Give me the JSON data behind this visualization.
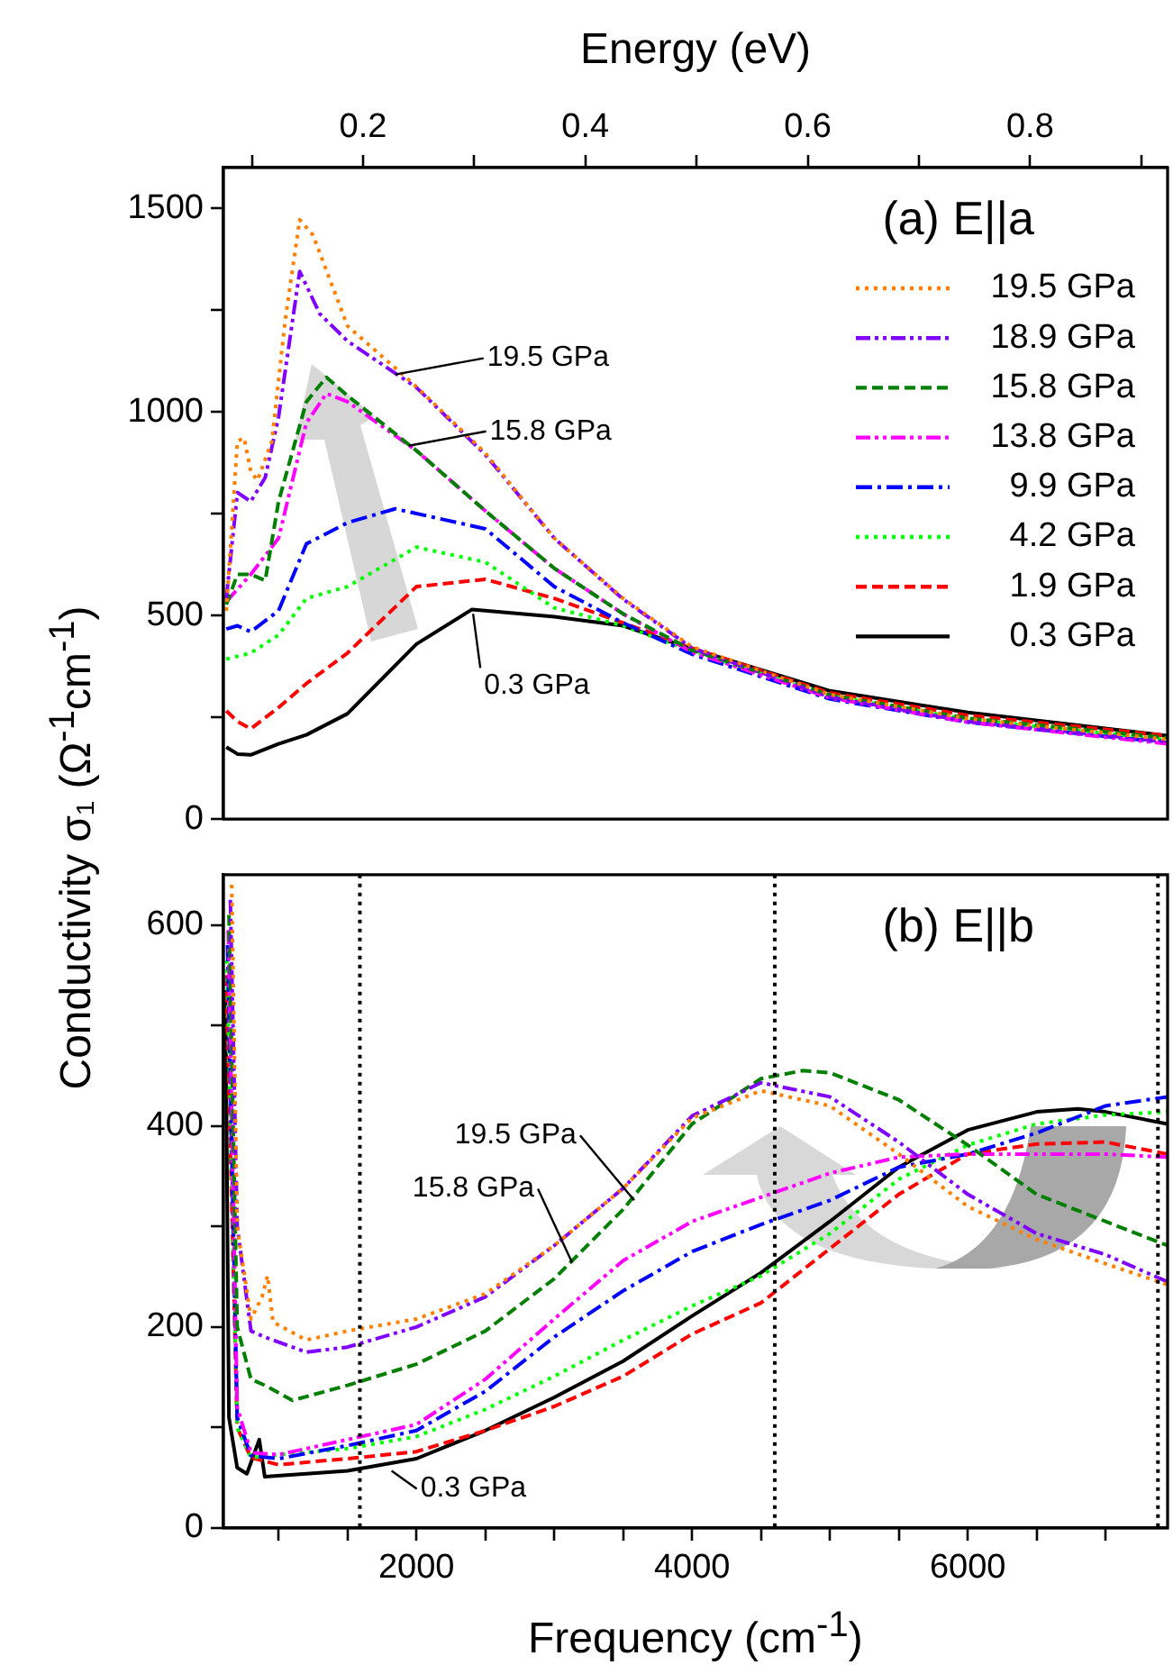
{
  "chart_data": [
    {
      "type": "line",
      "ylabel": "Conductivity σ₁ (Ω$^{-1}$cm$^{-1}$)",
      "xlabel": "Energy (eV)",
      "xlim": [
        0.0744,
        0.9237
      ],
      "xticks": [
        {
          "value": 0.1,
          "label": null
        },
        0.2,
        {
          "value": 0.3,
          "label": null
        },
        0.4,
        {
          "value": 0.5,
          "label": null
        },
        0.6,
        {
          "value": 0.7,
          "label": null
        },
        0.8,
        {
          "value": 0.9,
          "label": null
        }
      ],
      "ylim": [
        0,
        1600
      ],
      "yticks": [
        0,
        {
          "value": 250,
          "label": null
        },
        500,
        {
          "value": 750,
          "label": null
        },
        1000,
        {
          "value": 1250,
          "label": null
        },
        1500
      ],
      "grid": false,
      "marker": "none",
      "legend": "top right",
      "annotations": [
        "(a) E||a",
        {
          "text": "19.5 GPa",
          "x": 0.229,
          "y": 1092
        },
        {
          "text": "15.8 GPa",
          "x": 0.241,
          "y": 917
        },
        {
          "text": "0.3 GPa",
          "x": 0.299,
          "y": 504
        }
      ],
      "series": [
        {
          "name": "19.5 GPa",
          "color": "#ff7f00",
          "line_style": "dotted",
          "x": [
            0.077,
            0.087,
            0.093,
            0.099,
            0.105,
            0.118,
            0.13,
            0.143,
            0.155,
            0.186,
            0.248,
            0.31,
            0.372,
            0.434,
            0.496,
            0.62,
            0.744,
            0.923
          ],
          "values": [
            512,
            928,
            936,
            854,
            832,
            928,
            1226,
            1472,
            1434,
            1211,
            1062,
            899,
            690,
            542,
            423,
            306,
            247,
            196
          ]
        },
        {
          "name": "18.9 GPa",
          "color": "#8000ff",
          "line_style": "dashdotdot",
          "x": [
            0.077,
            0.087,
            0.099,
            0.112,
            0.124,
            0.143,
            0.161,
            0.186,
            0.248,
            0.31,
            0.372,
            0.434,
            0.496,
            0.62,
            0.744,
            0.923
          ],
          "values": [
            542,
            802,
            780,
            839,
            988,
            1345,
            1241,
            1174,
            1060,
            895,
            690,
            540,
            420,
            300,
            240,
            190
          ]
        },
        {
          "name": "15.8 GPa",
          "color": "#007f00",
          "line_style": "dashed",
          "x": [
            0.077,
            0.087,
            0.099,
            0.112,
            0.124,
            0.149,
            0.167,
            0.186,
            0.248,
            0.31,
            0.372,
            0.434,
            0.496,
            0.62,
            0.744,
            0.923
          ],
          "values": [
            527,
            601,
            601,
            586,
            780,
            1025,
            1085,
            1040,
            905,
            757,
            616,
            504,
            415,
            305,
            248,
            200
          ]
        },
        {
          "name": "13.8 GPa",
          "color": "#ff00ff",
          "line_style": "dashdotdot",
          "x": [
            0.077,
            0.099,
            0.124,
            0.149,
            0.167,
            0.186,
            0.248,
            0.31,
            0.372,
            0.434,
            0.496,
            0.62,
            0.744,
            0.923
          ],
          "values": [
            534,
            601,
            690,
            973,
            1045,
            1025,
            905,
            757,
            616,
            504,
            410,
            298,
            238,
            185
          ]
        },
        {
          "name": "9.9 GPa",
          "color": "#0000ff",
          "line_style": "dashdot",
          "x": [
            0.077,
            0.087,
            0.099,
            0.124,
            0.149,
            0.186,
            0.229,
            0.31,
            0.372,
            0.434,
            0.496,
            0.62,
            0.744,
            0.923
          ],
          "values": [
            467,
            475,
            460,
            512,
            676,
            728,
            762,
            713,
            571,
            482,
            405,
            295,
            238,
            188
          ]
        },
        {
          "name": "4.2 GPa",
          "color": "#00ff00",
          "line_style": "dotted",
          "x": [
            0.077,
            0.099,
            0.124,
            0.149,
            0.186,
            0.248,
            0.31,
            0.372,
            0.434,
            0.496,
            0.62,
            0.744,
            0.923
          ],
          "values": [
            393,
            408,
            452,
            542,
            571,
            668,
            631,
            519,
            475,
            412,
            303,
            245,
            195
          ]
        },
        {
          "name": "1.9 GPa",
          "color": "#ff0000",
          "line_style": "dashed",
          "x": [
            0.077,
            0.087,
            0.099,
            0.124,
            0.149,
            0.186,
            0.248,
            0.31,
            0.372,
            0.434,
            0.496,
            0.62,
            0.744,
            0.923
          ],
          "values": [
            266,
            240,
            222,
            274,
            333,
            408,
            571,
            589,
            542,
            482,
            420,
            310,
            255,
            205
          ]
        },
        {
          "name": "0.3 GPa",
          "color": "#000000",
          "line_style": "solid",
          "x": [
            0.077,
            0.087,
            0.099,
            0.124,
            0.149,
            0.186,
            0.248,
            0.298,
            0.372,
            0.434,
            0.496,
            0.62,
            0.744,
            0.923
          ],
          "values": [
            177,
            160,
            158,
            185,
            207,
            259,
            430,
            515,
            497,
            475,
            418,
            315,
            262,
            205
          ]
        }
      ]
    },
    {
      "type": "line",
      "xlabel": "Frequency (cm$^{-1}$)",
      "xlim": [
        600,
        7450
      ],
      "xticks": [
        {
          "value": 1000,
          "label": null
        },
        {
          "value": 1500,
          "label": null
        },
        2000,
        {
          "value": 2500,
          "label": null
        },
        {
          "value": 3000,
          "label": null
        },
        {
          "value": 3500,
          "label": null
        },
        4000,
        {
          "value": 4500,
          "label": null
        },
        {
          "value": 5000,
          "label": null
        },
        {
          "value": 5500,
          "label": null
        },
        6000,
        {
          "value": 6500,
          "label": null
        },
        {
          "value": 7000,
          "label": null
        }
      ],
      "ylim": [
        0,
        650
      ],
      "yticks": [
        0,
        {
          "value": 100,
          "label": null
        },
        200,
        {
          "value": 300,
          "label": null
        },
        400,
        {
          "value": 500,
          "label": null
        },
        600
      ],
      "grid": false,
      "marker": "none",
      "annotations": [
        "(b) E||b",
        {
          "text": "19.5 GPa",
          "x": 3580,
          "y": 326
        },
        {
          "text": "15.8 GPa",
          "x": 3130,
          "y": 264
        },
        {
          "text": "0.3 GPa",
          "x": 1820,
          "y": 57
        }
      ],
      "ref_lines": [
        {
          "axis": "x",
          "value": 1590,
          "color": "#000000",
          "line_style": "dotted"
        },
        {
          "axis": "x",
          "value": 4600,
          "color": "#000000",
          "line_style": "dotted"
        },
        {
          "axis": "x",
          "value": 7380,
          "color": "#000000",
          "line_style": "dotted"
        }
      ],
      "series": [
        {
          "color": "#ff7f00",
          "line_style": "dotted",
          "x": [
            660,
            700,
            800,
            880,
            920,
            960,
            1200,
            1500,
            2000,
            2500,
            3000,
            3500,
            4000,
            4500,
            5000,
            5500,
            6000,
            6500,
            7000,
            7450
          ],
          "values": [
            640,
            300,
            208,
            230,
            251,
            205,
            187,
            196,
            208,
            233,
            281,
            338,
            408,
            435,
            420,
            372,
            320,
            287,
            263,
            242
          ]
        },
        {
          "color": "#8000ff",
          "line_style": "dashdotdot",
          "x": [
            650,
            700,
            800,
            900,
            1200,
            1500,
            2000,
            2500,
            3000,
            3500,
            4000,
            4500,
            5000,
            5500,
            6000,
            6500,
            7000,
            7450
          ],
          "values": [
            625,
            300,
            196,
            190,
            175,
            180,
            200,
            230,
            281,
            338,
            410,
            443,
            429,
            384,
            332,
            293,
            272,
            245
          ]
        },
        {
          "color": "#007f00",
          "line_style": "dashed",
          "x": [
            640,
            700,
            800,
            900,
            1100,
            1500,
            2000,
            2500,
            3000,
            3500,
            4000,
            4500,
            4800,
            5000,
            5500,
            6000,
            6500,
            7000,
            7450
          ],
          "values": [
            610,
            200,
            148,
            142,
            127,
            142,
            163,
            196,
            248,
            317,
            402,
            447,
            455,
            453,
            426,
            381,
            332,
            305,
            281
          ]
        },
        {
          "color": "#ff00ff",
          "line_style": "dashdotdot",
          "x": [
            635,
            700,
            800,
            1000,
            1500,
            2000,
            2500,
            3000,
            3500,
            4000,
            4500,
            5000,
            5500,
            6000,
            6500,
            7000,
            7450
          ],
          "values": [
            595,
            120,
            75,
            73,
            88,
            103,
            148,
            208,
            266,
            305,
            329,
            353,
            369,
            372,
            372,
            372,
            369
          ]
        },
        {
          "color": "#0000ff",
          "line_style": "dashdot",
          "x": [
            630,
            700,
            800,
            1000,
            1500,
            2000,
            2500,
            3000,
            3500,
            4000,
            4500,
            5000,
            5500,
            6000,
            6500,
            7000,
            7450
          ],
          "values": [
            580,
            110,
            72,
            69,
            82,
            97,
            136,
            190,
            236,
            275,
            302,
            326,
            359,
            372,
            393,
            420,
            429
          ]
        },
        {
          "color": "#00ff00",
          "line_style": "dotted",
          "x": [
            625,
            700,
            800,
            1000,
            1500,
            2000,
            2500,
            3000,
            3500,
            4000,
            4500,
            5000,
            5500,
            6000,
            6500,
            7000,
            7450
          ],
          "values": [
            565,
            100,
            70,
            73,
            79,
            91,
            118,
            151,
            187,
            221,
            251,
            293,
            347,
            381,
            402,
            411,
            414
          ]
        },
        {
          "color": "#ff0000",
          "line_style": "dashed",
          "x": [
            620,
            700,
            800,
            1000,
            1500,
            2000,
            2500,
            3000,
            3500,
            4000,
            4500,
            5000,
            5500,
            6000,
            6500,
            7000,
            7450
          ],
          "values": [
            550,
            100,
            70,
            63,
            69,
            76,
            97,
            121,
            151,
            193,
            224,
            278,
            332,
            372,
            382,
            384,
            372
          ]
        },
        {
          "color": "#000000",
          "line_style": "solid",
          "x": [
            615,
            640,
            700,
            770,
            860,
            900,
            1500,
            2000,
            2500,
            3000,
            3500,
            4000,
            4500,
            5000,
            5500,
            6000,
            6500,
            6800,
            7000,
            7450
          ],
          "values": [
            535,
            110,
            60,
            54,
            88,
            51,
            57,
            69,
            97,
            130,
            166,
            211,
            254,
            305,
            359,
            396,
            414,
            417,
            414,
            402
          ]
        }
      ]
    }
  ]
}
